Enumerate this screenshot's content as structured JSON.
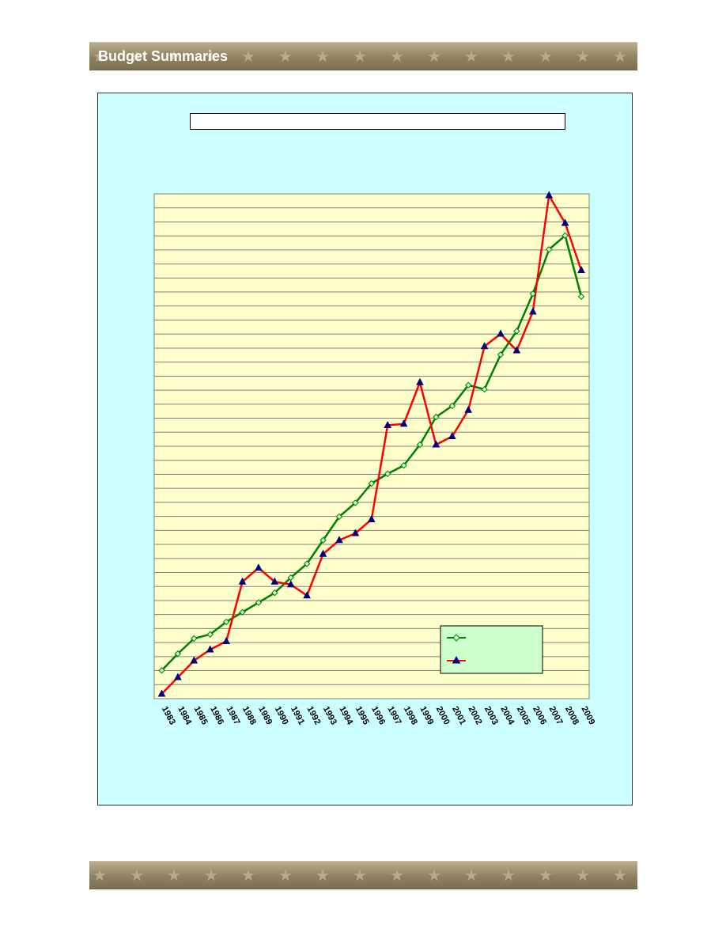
{
  "header": {
    "title": "Budget Summaries"
  },
  "chart_data": {
    "type": "line",
    "title": "",
    "xlabel": "",
    "ylabel": "",
    "categories": [
      "1983",
      "1984",
      "1985",
      "1986",
      "1987",
      "1988",
      "1989",
      "1990",
      "1991",
      "1992",
      "1993",
      "1994",
      "1995",
      "1996",
      "1997",
      "1998",
      "1999",
      "2000",
      "2001",
      "2002",
      "2003",
      "2004",
      "2005",
      "2006",
      "2007",
      "2008",
      "2009"
    ],
    "ylim": [
      0,
      36
    ],
    "grid": true,
    "legend_position": "bottom-right",
    "series": [
      {
        "marker": "diamond",
        "color": "#008000",
        "values": [
          1.7,
          2.9,
          4.0,
          4.3,
          5.2,
          5.9,
          6.6,
          7.3,
          8.4,
          9.4,
          11.1,
          12.8,
          13.8,
          15.2,
          15.9,
          16.5,
          18.0,
          20.0,
          20.8,
          22.3,
          22.0,
          24.5,
          26.2,
          28.9,
          32.1,
          33.1,
          28.7
        ]
      },
      {
        "marker": "triangle",
        "color": "#ff0000",
        "values": [
          0.0,
          1.2,
          2.4,
          3.2,
          3.8,
          8.1,
          9.1,
          8.1,
          7.9,
          7.1,
          10.1,
          11.1,
          11.6,
          12.6,
          19.4,
          19.5,
          22.5,
          18.0,
          18.6,
          20.5,
          25.1,
          26.0,
          24.8,
          27.6,
          36.0,
          34.0,
          30.6
        ]
      }
    ],
    "colors": {
      "background": "#ccffff",
      "plot_area": "#ffffcc",
      "legend_bg": "#ccffcc",
      "series_a": "#008000",
      "series_b": "#ff0000",
      "marker_b_fill": "#000080"
    }
  }
}
